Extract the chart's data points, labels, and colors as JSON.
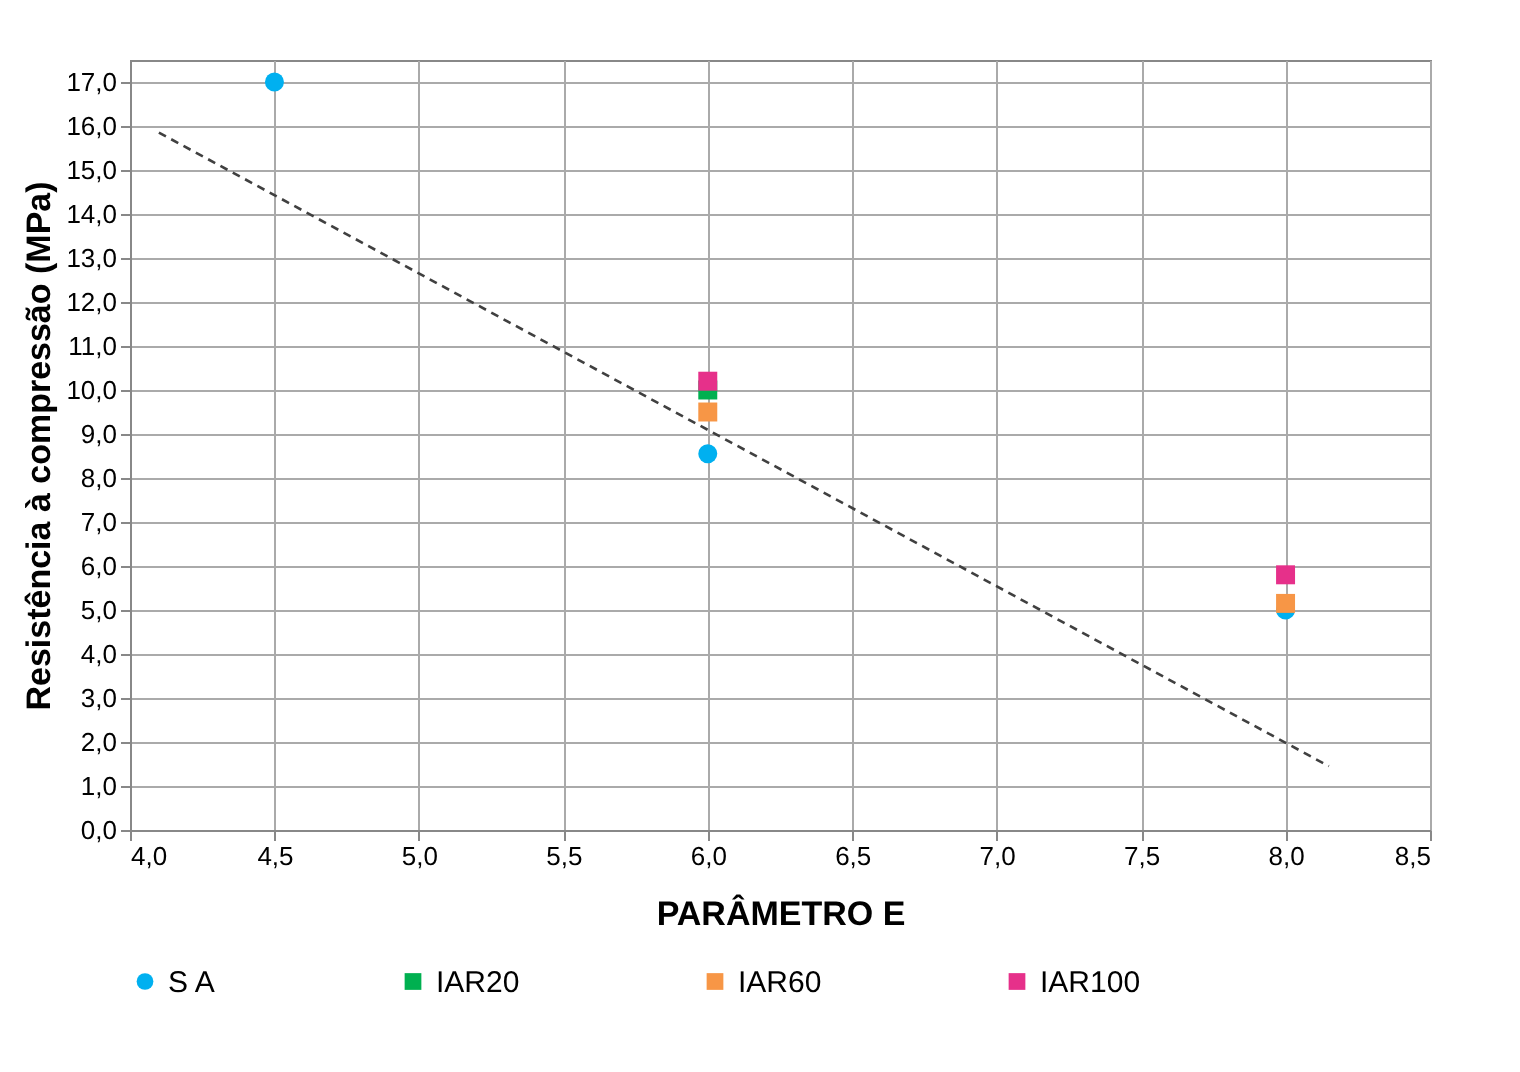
{
  "chart_data": {
    "type": "scatter",
    "xlabel": "PARÂMETRO E",
    "ylabel": "Resistência à compressão (MPa)",
    "xlim": [
      4.0,
      8.5
    ],
    "ylim": [
      0,
      17.5
    ],
    "xticks": [
      {
        "value": 4.0,
        "label": "4,0"
      },
      {
        "value": 4.5,
        "label": "4,5"
      },
      {
        "value": 5.0,
        "label": "5,0"
      },
      {
        "value": 5.5,
        "label": "5,5"
      },
      {
        "value": 6.0,
        "label": "6,0"
      },
      {
        "value": 6.5,
        "label": "6,5"
      },
      {
        "value": 7.0,
        "label": "7,0"
      },
      {
        "value": 7.5,
        "label": "7,5"
      },
      {
        "value": 8.0,
        "label": "8,0"
      },
      {
        "value": 8.5,
        "label": "8,5"
      }
    ],
    "yticks": [
      {
        "value": 0,
        "label": "0,0"
      },
      {
        "value": 1,
        "label": "1,0"
      },
      {
        "value": 2,
        "label": "2,0"
      },
      {
        "value": 3,
        "label": "3,0"
      },
      {
        "value": 4,
        "label": "4,0"
      },
      {
        "value": 5,
        "label": "5,0"
      },
      {
        "value": 6,
        "label": "6,0"
      },
      {
        "value": 7,
        "label": "7,0"
      },
      {
        "value": 8,
        "label": "8,0"
      },
      {
        "value": 9,
        "label": "9,0"
      },
      {
        "value": 10,
        "label": "10,0"
      },
      {
        "value": 11,
        "label": "11,0"
      },
      {
        "value": 12,
        "label": "12,0"
      },
      {
        "value": 13,
        "label": "13,0"
      },
      {
        "value": 14,
        "label": "14,0"
      },
      {
        "value": 15,
        "label": "15,0"
      },
      {
        "value": 16,
        "label": "16,0"
      },
      {
        "value": 17,
        "label": "17,0"
      }
    ],
    "grid": true,
    "legend": "bottom",
    "series": [
      {
        "name": "S A",
        "color": "#00b0f0",
        "marker": "circle",
        "x": [
          4.5,
          6.0,
          8.0
        ],
        "values": [
          17.0,
          8.55,
          5.0
        ]
      },
      {
        "name": "IAR20",
        "color": "#00b050",
        "marker": "square",
        "x": [
          6.0
        ],
        "values": [
          10.0
        ]
      },
      {
        "name": "IAR60",
        "color": "#f79646",
        "marker": "square",
        "x": [
          6.0,
          8.0
        ],
        "values": [
          9.5,
          5.15
        ]
      },
      {
        "name": "IAR100",
        "color": "#e6308a",
        "marker": "square",
        "x": [
          6.0,
          8.0
        ],
        "values": [
          10.2,
          5.8
        ]
      },
      {
        "type": "line",
        "color": "#404040",
        "line_style": "dashed",
        "x": [
          4.1,
          8.15
        ],
        "values": [
          15.85,
          1.45
        ]
      }
    ]
  }
}
